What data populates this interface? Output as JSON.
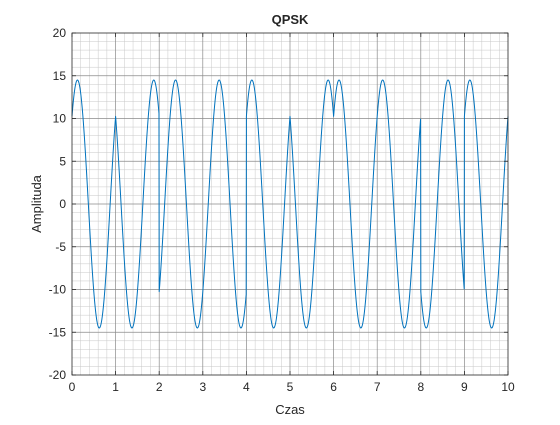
{
  "chart_data": {
    "type": "line",
    "title": "QPSK",
    "xlabel": "Czas",
    "ylabel": "Amplituda",
    "xlim": [
      0,
      10
    ],
    "ylim": [
      -20,
      20
    ],
    "xticks": [
      0,
      1,
      2,
      3,
      4,
      5,
      6,
      7,
      8,
      9,
      10
    ],
    "yticks": [
      -20,
      -15,
      -10,
      -5,
      0,
      5,
      10,
      15,
      20
    ],
    "xtick_labels": [
      "0",
      "1",
      "2",
      "3",
      "4",
      "5",
      "6",
      "7",
      "8",
      "9",
      "10"
    ],
    "ytick_labels": [
      "-20",
      "-15",
      "-10",
      "-5",
      "0",
      "5",
      "10",
      "15",
      "20"
    ],
    "grid": true,
    "minor_grid": true,
    "line_color": "#0072BD",
    "series": [
      {
        "name": "",
        "signal": {
          "amplitude": 14.5,
          "carrier_frequency": 1,
          "symbol_duration": 1,
          "phases_deg": [
            45,
            135,
            315,
            315,
            45,
            135,
            45,
            45,
            225,
            45
          ]
        },
        "points": [
          [
            0,
            10.2
          ],
          [
            0.125,
            14.5
          ],
          [
            0.375,
            0
          ],
          [
            0.625,
            -14.5
          ],
          [
            0.875,
            0
          ],
          [
            1,
            10.2
          ],
          [
            1,
            10.2
          ],
          [
            1.125,
            0
          ],
          [
            1.375,
            -14.5
          ],
          [
            1.625,
            0
          ],
          [
            1.875,
            14.5
          ],
          [
            2,
            10.2
          ],
          [
            2,
            -10.2
          ],
          [
            2.125,
            0
          ],
          [
            2.375,
            14.5
          ],
          [
            2.625,
            0
          ],
          [
            2.875,
            -14.5
          ],
          [
            3,
            10.2
          ],
          [
            3,
            10.2
          ],
          [
            3.125,
            0
          ],
          [
            3.375,
            -14.5
          ],
          [
            3.625,
            0
          ],
          [
            3.875,
            14.5
          ],
          [
            4,
            10.2
          ],
          [
            4,
            10.2
          ],
          [
            4.125,
            14.5
          ],
          [
            4.375,
            0
          ],
          [
            4.625,
            -14.5
          ],
          [
            4.875,
            0
          ],
          [
            5,
            10.2
          ],
          [
            5,
            10.2
          ],
          [
            5.125,
            0
          ],
          [
            5.375,
            -14.5
          ],
          [
            5.625,
            0
          ],
          [
            5.875,
            14.5
          ],
          [
            6,
            10.2
          ],
          [
            6,
            -10.2
          ],
          [
            6.375,
            14.5
          ],
          [
            6.625,
            0
          ],
          [
            6.875,
            -14.5
          ],
          [
            7,
            10.2
          ],
          [
            7,
            10.2
          ],
          [
            7.375,
            13
          ],
          [
            7.625,
            0
          ],
          [
            7.875,
            -14.5
          ],
          [
            8,
            10.2
          ],
          [
            8,
            10.2
          ],
          [
            8.375,
            -14.5
          ],
          [
            8.625,
            0
          ],
          [
            8.875,
            14.5
          ],
          [
            9,
            10.2
          ],
          [
            9,
            10.2
          ],
          [
            9.125,
            14.5
          ],
          [
            9.375,
            0
          ],
          [
            9.625,
            -14.5
          ],
          [
            9.875,
            0
          ],
          [
            10,
            10.2
          ]
        ]
      }
    ]
  }
}
